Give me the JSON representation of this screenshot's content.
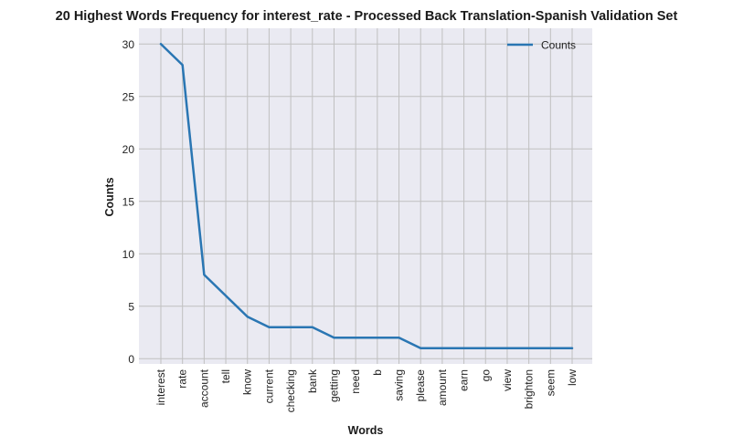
{
  "chart_data": {
    "type": "line",
    "title": "20 Highest Words Frequency for interest_rate - Processed Back Translation-Spanish Validation Set",
    "xlabel": "Words",
    "ylabel": "Counts",
    "categories": [
      "interest",
      "rate",
      "account",
      "tell",
      "know",
      "current",
      "checking",
      "bank",
      "getting",
      "need",
      "b",
      "saving",
      "please",
      "amount",
      "earn",
      "go",
      "view",
      "brighton",
      "seem",
      "low"
    ],
    "series": [
      {
        "name": "Counts",
        "values": [
          30,
          28,
          8,
          6,
          4,
          3,
          3,
          3,
          2,
          2,
          2,
          2,
          1,
          1,
          1,
          1,
          1,
          1,
          1,
          1
        ]
      }
    ],
    "ylim": [
      -0.5,
      31.5
    ],
    "yticks": [
      "0",
      "5",
      "10",
      "15",
      "20",
      "25",
      "30"
    ],
    "grid": true,
    "legend_position": "top-right",
    "colors": {
      "line": "#2a76b3",
      "plot_bg": "#eaeaf2",
      "grid": "#c0c0c0"
    }
  }
}
